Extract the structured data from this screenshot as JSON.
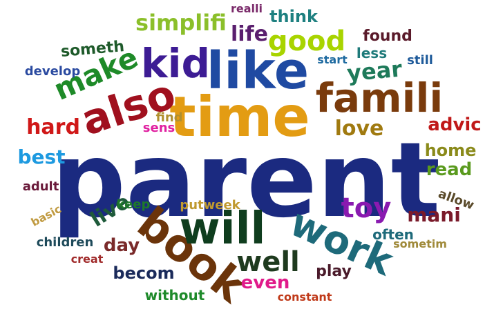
{
  "words": [
    {
      "text": "parent",
      "color": "#1b2a80"
    },
    {
      "text": "time",
      "color": "#e39c13"
    },
    {
      "text": "like",
      "color": "#1f4aa2"
    },
    {
      "text": "famili",
      "color": "#7a3b0c"
    },
    {
      "text": "kid",
      "color": "#3d1c94"
    },
    {
      "text": "also",
      "color": "#a0101e"
    },
    {
      "text": "make",
      "color": "#1e8a28"
    },
    {
      "text": "book",
      "color": "#6b340a"
    },
    {
      "text": "will",
      "color": "#0f3d1e"
    },
    {
      "text": "work",
      "color": "#1e6a7a"
    },
    {
      "text": "good",
      "color": "#a8d400"
    },
    {
      "text": "simplifi",
      "color": "#8bbf2a"
    },
    {
      "text": "life",
      "color": "#5a1f6e"
    },
    {
      "text": "think",
      "color": "#1e8080"
    },
    {
      "text": "realli",
      "color": "#7a2a6a"
    },
    {
      "text": "found",
      "color": "#5a1a2a"
    },
    {
      "text": "someth",
      "color": "#1e5a2a"
    },
    {
      "text": "year",
      "color": "#1e7a5a"
    },
    {
      "text": "less",
      "color": "#1e7a7a"
    },
    {
      "text": "start",
      "color": "#1e6aa0"
    },
    {
      "text": "still",
      "color": "#1e5a9a"
    },
    {
      "text": "develop",
      "color": "#2a4aa0"
    },
    {
      "text": "hard",
      "color": "#d01818"
    },
    {
      "text": "find",
      "color": "#b09030"
    },
    {
      "text": "sens",
      "color": "#e020a0"
    },
    {
      "text": "love",
      "color": "#a07a10"
    },
    {
      "text": "advic",
      "color": "#c01818"
    },
    {
      "text": "best",
      "color": "#1e9ae0"
    },
    {
      "text": "home",
      "color": "#8a8a1a"
    },
    {
      "text": "read",
      "color": "#5a9a1e"
    },
    {
      "text": "adult",
      "color": "#6a1a3a"
    },
    {
      "text": "allow",
      "color": "#5a4a2a"
    },
    {
      "text": "toy",
      "color": "#8a1ab0"
    },
    {
      "text": "mani",
      "color": "#7a1a2a"
    },
    {
      "text": "live",
      "color": "#1e5a3a"
    },
    {
      "text": "keep",
      "color": "#1e7a2a"
    },
    {
      "text": "putweek",
      "color": "#c09a30"
    },
    {
      "text": "basic",
      "color": "#c09a40"
    },
    {
      "text": "day",
      "color": "#7a2a2a"
    },
    {
      "text": "often",
      "color": "#1e6a7a"
    },
    {
      "text": "children",
      "color": "#1e4a5a"
    },
    {
      "text": "sometim",
      "color": "#a08a3a"
    },
    {
      "text": "well",
      "color": "#1e3a1e"
    },
    {
      "text": "creat",
      "color": "#a02a2a"
    },
    {
      "text": "becom",
      "color": "#1a2a5a"
    },
    {
      "text": "even",
      "color": "#e01a8a"
    },
    {
      "text": "play",
      "color": "#4a1a2a"
    },
    {
      "text": "without",
      "color": "#1e8a2a"
    },
    {
      "text": "constant",
      "color": "#c03a1a"
    }
  ]
}
